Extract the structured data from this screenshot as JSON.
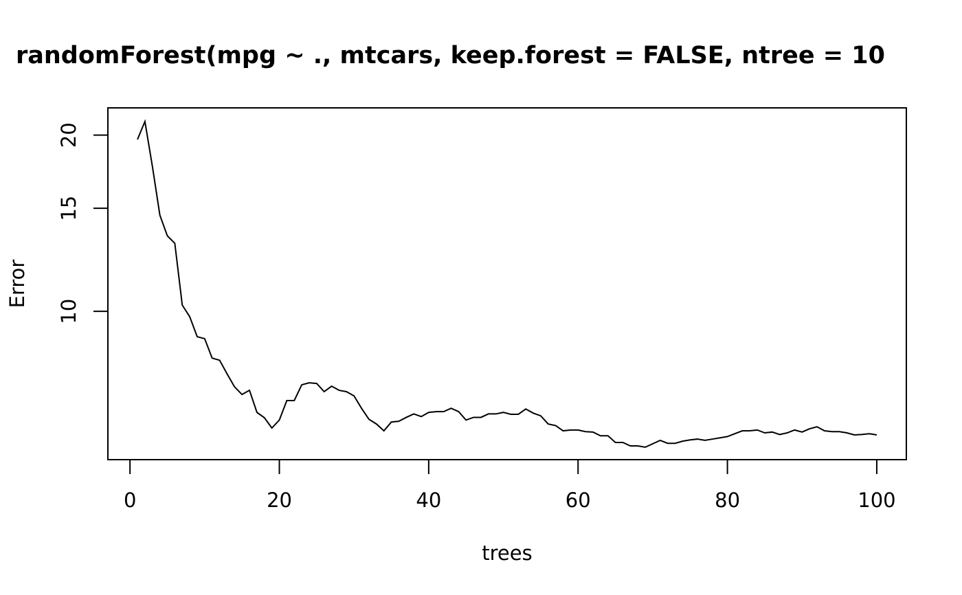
{
  "chart_data": {
    "type": "line",
    "title": "randomForest(mpg ~ ., mtcars, keep.forest = FALSE, ntree = 10",
    "x_label": "trees",
    "y_label": "Error",
    "log_y": true,
    "color": "#000000",
    "xlim": [
      -2.96,
      103.96
    ],
    "ylim": [
      5.58,
      22.26
    ],
    "xticks": [
      0,
      20,
      40,
      60,
      80,
      100
    ],
    "yticks": [
      10,
      15,
      20
    ],
    "x": [
      1,
      2,
      3,
      4,
      5,
      6,
      7,
      8,
      9,
      10,
      11,
      12,
      13,
      14,
      15,
      16,
      17,
      18,
      19,
      20,
      21,
      22,
      23,
      24,
      25,
      26,
      27,
      28,
      29,
      30,
      31,
      32,
      33,
      34,
      35,
      36,
      37,
      38,
      39,
      40,
      41,
      42,
      43,
      44,
      45,
      46,
      47,
      48,
      49,
      50,
      51,
      52,
      53,
      54,
      55,
      56,
      57,
      58,
      59,
      60,
      61,
      62,
      63,
      64,
      65,
      66,
      67,
      68,
      69,
      70,
      71,
      72,
      73,
      74,
      75,
      76,
      77,
      78,
      79,
      80,
      81,
      82,
      83,
      84,
      85,
      86,
      87,
      88,
      89,
      90,
      91,
      92,
      93,
      94,
      95,
      96,
      97,
      98,
      99,
      100
    ],
    "values": [
      19.66,
      21.1,
      17.69,
      14.6,
      13.46,
      13.07,
      10.25,
      9.79,
      9.05,
      8.98,
      8.32,
      8.25,
      7.82,
      7.43,
      7.21,
      7.33,
      6.72,
      6.58,
      6.32,
      6.52,
      7.04,
      7.04,
      7.49,
      7.55,
      7.53,
      7.29,
      7.45,
      7.33,
      7.29,
      7.17,
      6.83,
      6.54,
      6.42,
      6.25,
      6.47,
      6.49,
      6.59,
      6.68,
      6.61,
      6.72,
      6.74,
      6.74,
      6.83,
      6.74,
      6.52,
      6.59,
      6.59,
      6.68,
      6.68,
      6.72,
      6.67,
      6.67,
      6.81,
      6.7,
      6.63,
      6.42,
      6.38,
      6.25,
      6.27,
      6.27,
      6.23,
      6.22,
      6.13,
      6.13,
      5.97,
      5.97,
      5.89,
      5.89,
      5.86,
      5.94,
      6.02,
      5.95,
      5.95,
      6.0,
      6.03,
      6.05,
      6.02,
      6.05,
      6.08,
      6.11,
      6.18,
      6.25,
      6.25,
      6.27,
      6.2,
      6.22,
      6.16,
      6.2,
      6.27,
      6.22,
      6.3,
      6.35,
      6.25,
      6.23,
      6.23,
      6.2,
      6.15,
      6.16,
      6.18,
      6.15
    ]
  }
}
